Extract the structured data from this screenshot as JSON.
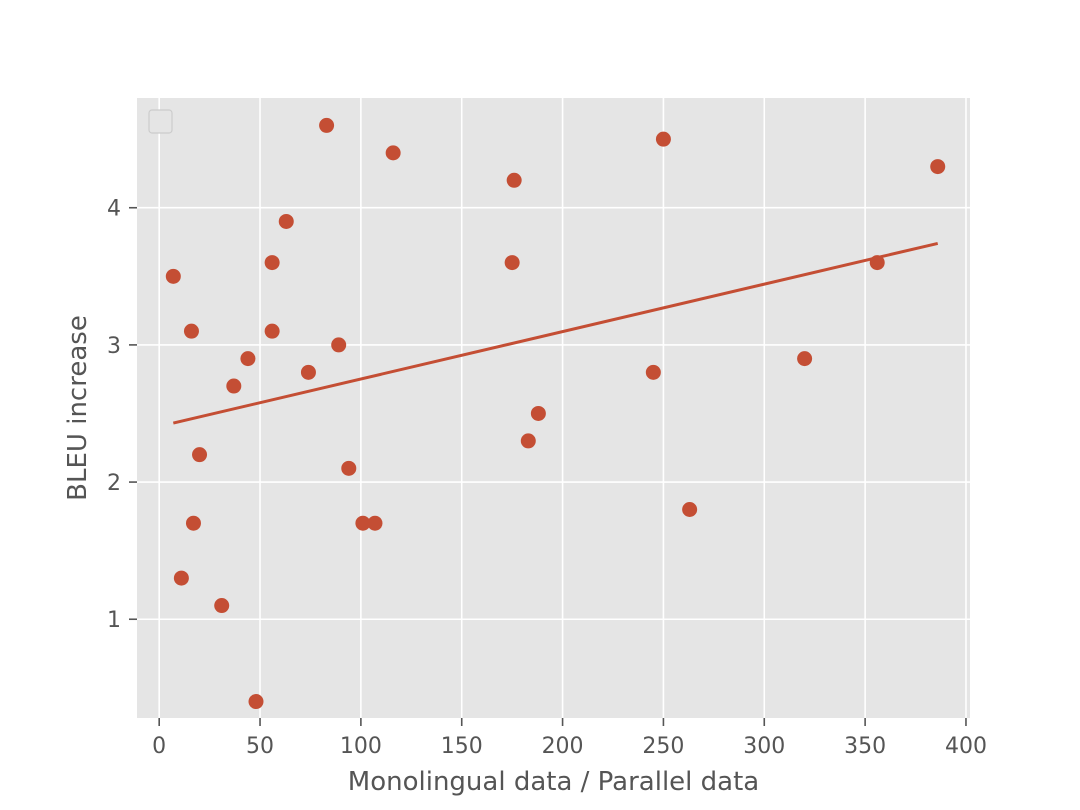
{
  "chart_data": {
    "type": "scatter",
    "xlabel": "Monolingual data / Parallel data",
    "ylabel": "BLEU increase",
    "xlim": [
      -11,
      402
    ],
    "ylim": [
      0.28,
      4.8
    ],
    "x_ticks": [
      0,
      50,
      100,
      150,
      200,
      250,
      300,
      350,
      400
    ],
    "y_ticks": [
      1,
      2,
      3,
      4
    ],
    "grid": true,
    "legend": "top-left",
    "colors": {
      "point": "#c44e34",
      "line": "#c44e34",
      "plot_bg": "#e5e5e5",
      "grid": "#ffffff"
    },
    "series": [
      {
        "points": [
          [
            7,
            3.5
          ],
          [
            11,
            1.3
          ],
          [
            16,
            3.1
          ],
          [
            17,
            1.7
          ],
          [
            20,
            2.2
          ],
          [
            31,
            1.1
          ],
          [
            37,
            2.7
          ],
          [
            44,
            2.9
          ],
          [
            48,
            0.4
          ],
          [
            56,
            3.6
          ],
          [
            56,
            3.1
          ],
          [
            63,
            3.9
          ],
          [
            74,
            2.8
          ],
          [
            83,
            4.6
          ],
          [
            89,
            3.0
          ],
          [
            94,
            2.1
          ],
          [
            101,
            1.7
          ],
          [
            107,
            1.7
          ],
          [
            116,
            4.4
          ],
          [
            175,
            3.6
          ],
          [
            176,
            4.2
          ],
          [
            183,
            2.3
          ],
          [
            188,
            2.5
          ],
          [
            245,
            2.8
          ],
          [
            250,
            4.5
          ],
          [
            263,
            1.8
          ],
          [
            320,
            2.9
          ],
          [
            356,
            3.6
          ],
          [
            386,
            4.3
          ]
        ]
      }
    ],
    "trendline": {
      "x": [
        7,
        386
      ],
      "y": [
        2.43,
        3.74
      ]
    }
  }
}
